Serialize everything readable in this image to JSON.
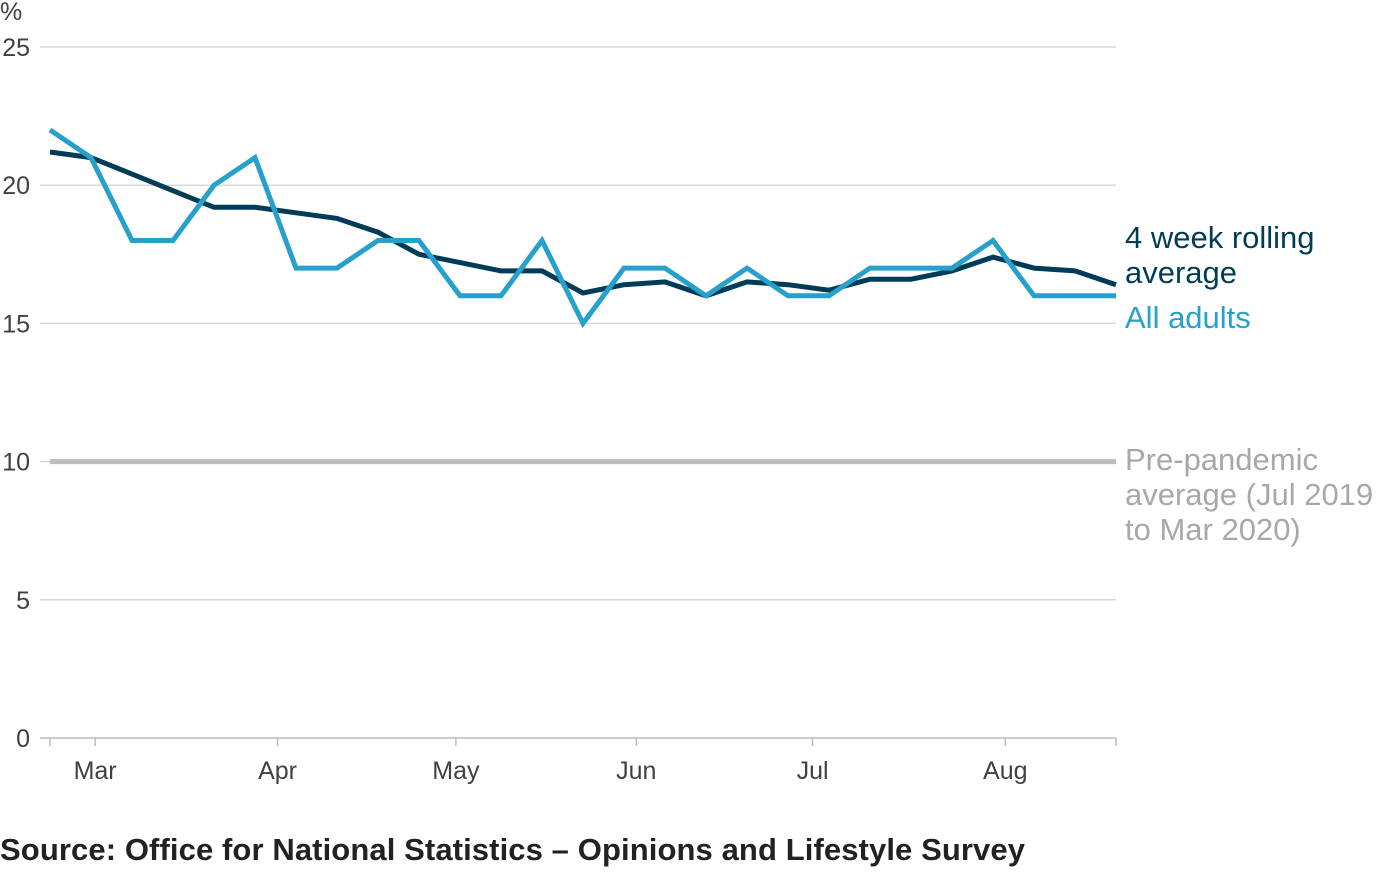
{
  "colors": {
    "rolling": "#003c57",
    "all_adults": "#27a0cc",
    "pre_pandemic": "#bcbcbc",
    "grid": "#d9d9d9",
    "axis": "#bcbcbc",
    "text": "#414042"
  },
  "source_text": "Source: Office for National Statistics – Opinions and Lifestyle Survey",
  "chart_data": {
    "type": "line",
    "unit_label": "%",
    "ylim": [
      0,
      25
    ],
    "y_ticks": [
      "0",
      "5",
      "10",
      "15",
      "20",
      "25"
    ],
    "x_tick_labels": [
      "Mar",
      "Apr",
      "May",
      "Jun",
      "Jul",
      "Aug"
    ],
    "x_tick_weeks": [
      1.1,
      5.55,
      9.9,
      14.3,
      18.6,
      23.3
    ],
    "grid": true,
    "legend": "inline labels at right end of lines",
    "series": [
      {
        "key": "rolling",
        "name_lines": [
          "4 week rolling",
          "average"
        ],
        "values": [
          21.2,
          21.0,
          20.4,
          19.8,
          19.2,
          19.2,
          19.0,
          18.8,
          18.3,
          17.5,
          17.2,
          16.9,
          16.9,
          16.1,
          16.4,
          16.5,
          16.0,
          16.5,
          16.4,
          16.2,
          16.6,
          16.6,
          16.9,
          17.4,
          17.0,
          16.9,
          16.4
        ]
      },
      {
        "key": "all_adults",
        "name_lines": [
          "All adults"
        ],
        "values": [
          22,
          21,
          18,
          18,
          20,
          21,
          17,
          17,
          18,
          18,
          16,
          16,
          18,
          15,
          17,
          17,
          16,
          17,
          16,
          16,
          17,
          17,
          17,
          18,
          16,
          16,
          16
        ]
      },
      {
        "key": "pre_pandemic",
        "name_lines": [
          "Pre-pandemic",
          "average (Jul 2019",
          "to Mar 2020)"
        ],
        "values": [
          10,
          10
        ]
      }
    ]
  }
}
